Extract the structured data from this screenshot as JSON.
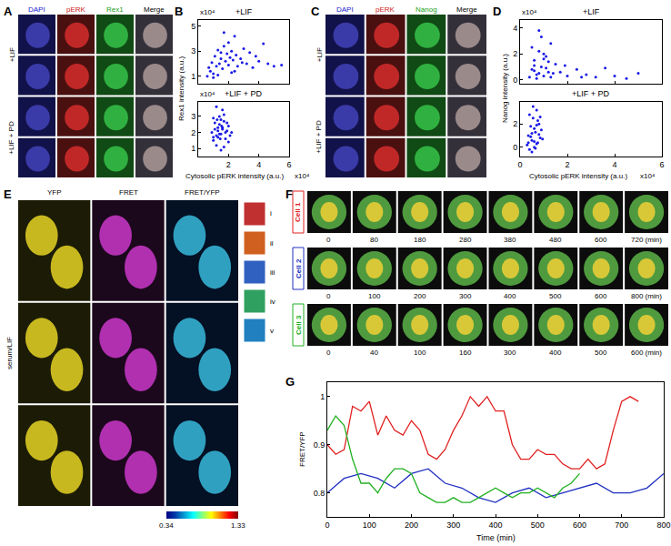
{
  "chart_data": [
    {
      "type": "scatter",
      "panel": "B",
      "title": "+LIF",
      "y_label": "Rex1 intensity (a.u.)",
      "y_multiplier": "x10⁴",
      "color": "#1a1ae6",
      "xlim": [
        0,
        6
      ],
      "xticks": [
        2,
        4,
        6
      ],
      "ylim": [
        0.4,
        5.5
      ],
      "yticks": [
        1,
        3,
        5
      ],
      "tick_labels": "y",
      "x": [
        0.6,
        0.8,
        0.9,
        1.0,
        1.1,
        1.2,
        1.3,
        1.4,
        1.5,
        1.6,
        1.7,
        1.8,
        1.9,
        2.0,
        2.1,
        2.2,
        2.3,
        2.4,
        2.5,
        2.6,
        2.8,
        3.0,
        3.2,
        3.4,
        3.6,
        3.8,
        4.0,
        4.3,
        4.6,
        5.0,
        5.5,
        1.0,
        1.3,
        1.7,
        2.0,
        2.4,
        2.9,
        0.7,
        1.5,
        2.2
      ],
      "values": [
        1.0,
        1.4,
        2.1,
        1.2,
        2.6,
        1.8,
        3.1,
        2.0,
        2.4,
        1.6,
        3.4,
        2.2,
        2.8,
        1.9,
        2.5,
        3.0,
        2.3,
        4.2,
        2.7,
        1.8,
        2.4,
        3.2,
        2.0,
        2.9,
        1.7,
        2.6,
        2.2,
        3.6,
        2.0,
        1.8,
        1.9,
        0.9,
        1.1,
        4.5,
        3.7,
        1.4,
        2.1,
        1.7,
        2.9,
        1.3
      ]
    },
    {
      "type": "scatter",
      "panel": "B",
      "title": "+LIF + PD",
      "x_label": "Cytosolic pERK intensity (a.u.)",
      "x_multiplier": "x10⁴",
      "y_multiplier": "x10⁴",
      "color": "#1a1ae6",
      "xlim": [
        0,
        6
      ],
      "xticks": [
        2,
        4,
        6
      ],
      "ylim": [
        0.5,
        3.9
      ],
      "yticks": [
        1,
        2,
        3
      ],
      "x": [
        0.9,
        1.0,
        1.1,
        1.2,
        1.3,
        1.4,
        1.5,
        1.6,
        1.7,
        1.8,
        1.9,
        2.0,
        2.1,
        1.0,
        1.2,
        1.4,
        1.6,
        1.8,
        2.0,
        1.1,
        1.3,
        1.5,
        1.7,
        1.9,
        1.2,
        1.4,
        1.6,
        1.5,
        1.3,
        1.7,
        1.0,
        2.2,
        1.45,
        1.55,
        1.25
      ],
      "values": [
        2.0,
        1.5,
        2.6,
        1.8,
        2.3,
        3.0,
        1.9,
        2.2,
        2.7,
        1.6,
        2.1,
        2.4,
        1.8,
        2.9,
        1.2,
        2.5,
        3.4,
        2.0,
        1.4,
        2.2,
        1.7,
        2.8,
        1.1,
        2.6,
        3.6,
        1.9,
        2.3,
        0.9,
        2.1,
        3.1,
        1.7,
        2.0,
        1.6,
        2.4,
        2.8
      ]
    },
    {
      "type": "scatter",
      "panel": "D",
      "title": "+LIF",
      "y_label": "Nanog intensity (a.u.)",
      "y_multiplier": "x10⁴",
      "color": "#1a1ae6",
      "xlim": [
        0,
        6
      ],
      "xticks": [
        0,
        2,
        4,
        6
      ],
      "ylim": [
        -0.3,
        4.6
      ],
      "yticks": [
        0,
        2,
        4
      ],
      "tick_labels": "y",
      "x": [
        0.4,
        0.5,
        0.6,
        0.7,
        0.8,
        0.9,
        1.0,
        1.1,
        1.2,
        1.3,
        1.4,
        1.5,
        0.5,
        0.7,
        0.9,
        1.1,
        1.3,
        0.6,
        0.8,
        1.0,
        1.2,
        1.7,
        2.0,
        2.4,
        2.8,
        3.2,
        3.6,
        4.0,
        4.5,
        5.0,
        0.8,
        1.0,
        0.6,
        1.9,
        2.6
      ],
      "values": [
        0.2,
        0.8,
        1.5,
        0.4,
        2.2,
        1.0,
        0.3,
        1.8,
        0.6,
        2.8,
        0.5,
        1.2,
        2.5,
        0.1,
        3.3,
        0.9,
        0.2,
        1.1,
        0.5,
        2.0,
        1.4,
        0.6,
        0.3,
        0.8,
        0.4,
        0.2,
        0.9,
        0.3,
        0.1,
        0.5,
        3.8,
        1.6,
        0.7,
        1.1,
        0.2
      ]
    },
    {
      "type": "scatter",
      "panel": "D",
      "title": "+LIF + PD",
      "x_label": "Cytosolic pERK intensity (a.u.)",
      "x_multiplier": "x10⁴",
      "color": "#1a1ae6",
      "xlim": [
        0,
        6
      ],
      "xticks": [
        0,
        2,
        4,
        6
      ],
      "ylim": [
        -0.8,
        3.9
      ],
      "yticks": [
        0,
        2
      ],
      "x": [
        0.3,
        0.35,
        0.4,
        0.45,
        0.5,
        0.55,
        0.6,
        0.65,
        0.7,
        0.75,
        0.8,
        0.85,
        0.9,
        0.4,
        0.5,
        0.6,
        0.7,
        0.8,
        0.45,
        0.55,
        0.65,
        0.75,
        0.5,
        0.6,
        0.7,
        0.95,
        0.35,
        0.85
      ],
      "values": [
        0.2,
        1.0,
        -0.2,
        1.8,
        0.6,
        2.5,
        0.0,
        1.3,
        3.2,
        0.4,
        2.0,
        0.8,
        1.5,
        2.8,
        -0.4,
        1.6,
        0.3,
        1.1,
        0.9,
        3.5,
        -0.1,
        2.3,
        1.2,
        0.5,
        1.9,
        0.7,
        0.4,
        2.6
      ]
    },
    {
      "type": "line",
      "panel": "G",
      "x_label": "Time (min)",
      "y_label": "FRET/YFP",
      "xlim": [
        0,
        800
      ],
      "xticks": [
        0,
        100,
        200,
        300,
        400,
        500,
        600,
        700,
        800
      ],
      "ylim": [
        0.75,
        1.03
      ],
      "yticks": [
        0.8,
        0.9,
        1
      ],
      "series": [
        {
          "name": "Cell 1",
          "color": "#e02020",
          "x": [
            0,
            20,
            40,
            60,
            80,
            100,
            120,
            140,
            160,
            180,
            200,
            220,
            240,
            260,
            280,
            300,
            320,
            340,
            360,
            380,
            400,
            420,
            440,
            460,
            480,
            500,
            520,
            540,
            560,
            580,
            600,
            620,
            640,
            660,
            680,
            700,
            720,
            740
          ],
          "values": [
            0.9,
            0.88,
            0.89,
            0.98,
            0.97,
            0.99,
            0.92,
            0.96,
            0.93,
            0.92,
            0.95,
            0.93,
            0.88,
            0.87,
            0.89,
            0.93,
            0.96,
            1.0,
            0.98,
            1.0,
            0.97,
            0.97,
            0.9,
            0.87,
            0.87,
            0.89,
            0.88,
            0.88,
            0.86,
            0.85,
            0.85,
            0.87,
            0.85,
            0.86,
            0.93,
            0.99,
            1.0,
            0.99
          ]
        },
        {
          "name": "Cell 2",
          "color": "#2030c0",
          "x": [
            0,
            40,
            80,
            120,
            160,
            200,
            240,
            280,
            320,
            360,
            400,
            440,
            480,
            520,
            560,
            600,
            640,
            680,
            720,
            760,
            800
          ],
          "values": [
            0.8,
            0.83,
            0.84,
            0.83,
            0.81,
            0.84,
            0.85,
            0.82,
            0.81,
            0.79,
            0.78,
            0.8,
            0.81,
            0.79,
            0.8,
            0.81,
            0.82,
            0.8,
            0.8,
            0.81,
            0.84
          ]
        },
        {
          "name": "Cell 3",
          "color": "#20b020",
          "x": [
            0,
            20,
            40,
            60,
            80,
            100,
            120,
            140,
            160,
            180,
            200,
            220,
            240,
            260,
            280,
            300,
            320,
            340,
            360,
            380,
            400,
            420,
            440,
            460,
            480,
            500,
            520,
            540,
            560,
            580,
            600
          ],
          "values": [
            0.93,
            0.96,
            0.94,
            0.87,
            0.82,
            0.82,
            0.8,
            0.83,
            0.85,
            0.85,
            0.84,
            0.8,
            0.79,
            0.78,
            0.78,
            0.79,
            0.78,
            0.78,
            0.79,
            0.8,
            0.81,
            0.8,
            0.79,
            0.8,
            0.8,
            0.81,
            0.8,
            0.79,
            0.81,
            0.82,
            0.84
          ]
        }
      ]
    }
  ],
  "panels": {
    "A": {
      "letter": "A",
      "columns": [
        "DAPI",
        "pERK",
        "Rex1",
        "Merge"
      ],
      "rows": [
        "+LIF",
        "+LIF + PD"
      ]
    },
    "C": {
      "letter": "C",
      "columns": [
        "DAPI",
        "pERK",
        "Nanog",
        "Merge"
      ],
      "rows": [
        "+LIF",
        "+LIF + PD"
      ]
    },
    "E": {
      "letter": "E",
      "columns": [
        "YFP",
        "FRET",
        "FRET/YFP"
      ],
      "row_label": "serum/LIF",
      "insets": [
        "i",
        "ii",
        "iii",
        "iv",
        "v"
      ],
      "colorbar": {
        "range": [
          0.34,
          1.33
        ],
        "ticks": [
          0.34,
          1.33
        ]
      }
    },
    "F": {
      "letter": "F",
      "unit": "(min)",
      "rows": [
        {
          "label": "Cell 1",
          "color": "#e02020",
          "times": [
            0,
            80,
            180,
            280,
            380,
            480,
            600,
            720
          ]
        },
        {
          "label": "Cell 2",
          "color": "#2030c0",
          "times": [
            0,
            100,
            200,
            300,
            400,
            500,
            600,
            800
          ]
        },
        {
          "label": "Cell 3",
          "color": "#20b020",
          "times": [
            0,
            40,
            100,
            160,
            300,
            400,
            500,
            600
          ]
        }
      ]
    }
  }
}
